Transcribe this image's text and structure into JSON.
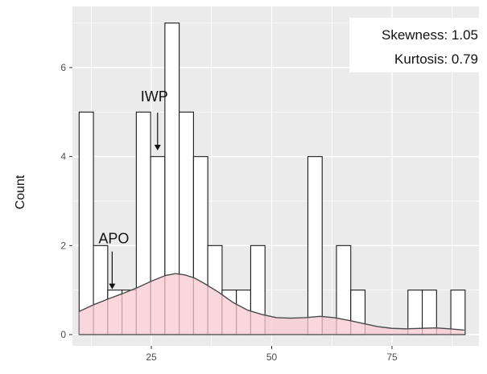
{
  "chart_data": {
    "type": "bar",
    "xlabel": "",
    "ylabel": "Count",
    "xlim": [
      6.5,
      93
    ],
    "ylim": [
      -0.25,
      7.3
    ],
    "xticks": [
      25,
      50,
      75
    ],
    "yticks": [
      0,
      2,
      4,
      6
    ],
    "grid": true,
    "legend": "none",
    "bin_width": 2.97,
    "bins": [
      {
        "x0": 10.0,
        "x1": 12.97,
        "count": 5
      },
      {
        "x0": 12.97,
        "x1": 15.94,
        "count": 2
      },
      {
        "x0": 15.94,
        "x1": 18.91,
        "count": 1
      },
      {
        "x0": 18.91,
        "x1": 21.88,
        "count": 1
      },
      {
        "x0": 21.88,
        "x1": 24.85,
        "count": 5
      },
      {
        "x0": 24.85,
        "x1": 27.82,
        "count": 4
      },
      {
        "x0": 27.82,
        "x1": 30.79,
        "count": 7
      },
      {
        "x0": 30.79,
        "x1": 33.76,
        "count": 5
      },
      {
        "x0": 33.76,
        "x1": 36.73,
        "count": 4
      },
      {
        "x0": 36.73,
        "x1": 39.7,
        "count": 2
      },
      {
        "x0": 39.7,
        "x1": 42.67,
        "count": 1
      },
      {
        "x0": 42.67,
        "x1": 45.64,
        "count": 1
      },
      {
        "x0": 45.64,
        "x1": 48.61,
        "count": 2
      },
      {
        "x0": 57.52,
        "x1": 60.49,
        "count": 4
      },
      {
        "x0": 63.46,
        "x1": 66.43,
        "count": 2
      },
      {
        "x0": 66.43,
        "x1": 69.4,
        "count": 1
      },
      {
        "x0": 78.31,
        "x1": 81.28,
        "count": 1
      },
      {
        "x0": 81.28,
        "x1": 84.25,
        "count": 1
      },
      {
        "x0": 87.22,
        "x1": 90.19,
        "count": 1
      }
    ],
    "density_curve": {
      "x": [
        10,
        13,
        16,
        19,
        22,
        25,
        28,
        30,
        32,
        34,
        36,
        39,
        42,
        45,
        48,
        51,
        54,
        57,
        60,
        63,
        66,
        69,
        72,
        75,
        78,
        81,
        84,
        87,
        90
      ],
      "y": [
        0.52,
        0.67,
        0.8,
        0.92,
        1.05,
        1.2,
        1.33,
        1.37,
        1.34,
        1.27,
        1.15,
        0.95,
        0.72,
        0.55,
        0.45,
        0.38,
        0.37,
        0.38,
        0.41,
        0.38,
        0.32,
        0.25,
        0.18,
        0.14,
        0.13,
        0.14,
        0.15,
        0.13,
        0.1
      ]
    },
    "stats": {
      "skewness": "Skewness: 1.05",
      "kurtosis": "Kurtosis: 0.79"
    },
    "annotations": [
      {
        "label": "IWP",
        "x": 26.3,
        "y": 4.12
      },
      {
        "label": "APO",
        "x": 17.2,
        "y": 1.0
      }
    ],
    "colors": {
      "panel_background": "#ebebeb",
      "grid": "#ffffff",
      "bar_fill": "#ffffff",
      "bar_stroke": "#1a1a1a",
      "density_fill": "#f7c9d1",
      "density_line": "#4a4a4a"
    }
  }
}
